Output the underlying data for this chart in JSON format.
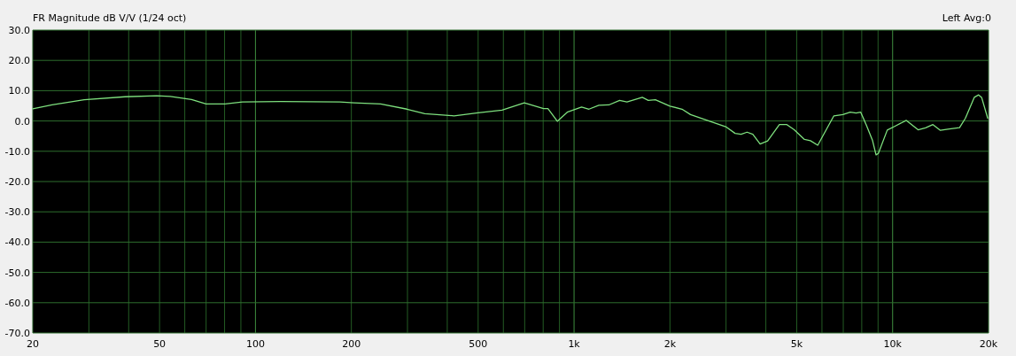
{
  "chart_data": {
    "type": "line",
    "title": "FR Magnitude dB V/V (1/24 oct)",
    "annotations": [
      "Left Avg:0"
    ],
    "log": "x",
    "grid": true,
    "marker": "none",
    "line_style": "solid",
    "xlim": [
      20,
      20000
    ],
    "ylim": [
      -70,
      30
    ],
    "xticks": [
      20,
      {
        "value": 30,
        "label": null
      },
      {
        "value": 40,
        "label": null
      },
      50,
      {
        "value": 60,
        "label": null
      },
      {
        "value": 70,
        "label": null
      },
      {
        "value": 80,
        "label": null
      },
      {
        "value": 90,
        "label": null
      },
      100,
      200,
      {
        "value": 300,
        "label": null
      },
      {
        "value": 400,
        "label": null
      },
      500,
      {
        "value": 600,
        "label": null
      },
      {
        "value": 700,
        "label": null
      },
      {
        "value": 800,
        "label": null
      },
      {
        "value": 900,
        "label": null
      },
      {
        "value": 1000,
        "label": "1k"
      },
      {
        "value": 2000,
        "label": "2k"
      },
      {
        "value": 3000,
        "label": null
      },
      {
        "value": 4000,
        "label": null
      },
      {
        "value": 5000,
        "label": "5k"
      },
      {
        "value": 6000,
        "label": null
      },
      {
        "value": 7000,
        "label": null
      },
      {
        "value": 8000,
        "label": null
      },
      {
        "value": 9000,
        "label": null
      },
      {
        "value": 10000,
        "label": "10k"
      },
      {
        "value": 20000,
        "label": "20k"
      }
    ],
    "yticks": [
      {
        "value": 30,
        "label": "30.0"
      },
      {
        "value": 20,
        "label": "20.0"
      },
      {
        "value": 10,
        "label": "10.0"
      },
      {
        "value": 0,
        "label": "0.0"
      },
      {
        "value": -10,
        "label": "-10.0"
      },
      {
        "value": -20,
        "label": "-20.0"
      },
      {
        "value": -30,
        "label": "-30.0"
      },
      {
        "value": -40,
        "label": "-40.0"
      },
      {
        "value": -50,
        "label": "-50.0"
      },
      {
        "value": -60,
        "label": "-60.0"
      },
      {
        "value": -70,
        "label": "-70.0"
      }
    ],
    "series": [
      {
        "color": "#7ee07e",
        "x": [
          20,
          23,
          29,
          39,
          49,
          54,
          63,
          70,
          80,
          91,
          120,
          184,
          204,
          247,
          299,
          340,
          420,
          500,
          594,
          698,
          802,
          828,
          886,
          952,
          1056,
          1114,
          1196,
          1286,
          1390,
          1466,
          1638,
          1710,
          1800,
          2000,
          2182,
          2320,
          3006,
          3204,
          3344,
          3492,
          3640,
          3838,
          4052,
          4412,
          4656,
          4910,
          5286,
          5520,
          5820,
          6540,
          6980,
          7360,
          7680,
          7940,
          8280,
          8640,
          8870,
          9020,
          9620,
          10140,
          11040,
          12020,
          12680,
          13380,
          14120,
          14900,
          16220,
          16920,
          18040,
          18620,
          19020,
          19880
        ],
        "values": [
          4.0,
          5.3,
          7.0,
          8.0,
          8.3,
          8.1,
          7.1,
          5.6,
          5.6,
          6.3,
          6.4,
          6.3,
          6.0,
          5.6,
          3.9,
          2.4,
          1.7,
          2.7,
          3.6,
          6.0,
          4.1,
          4.1,
          -0.1,
          2.9,
          4.6,
          3.9,
          5.2,
          5.3,
          6.8,
          6.3,
          7.8,
          6.8,
          7.0,
          4.9,
          3.9,
          2.1,
          -2.0,
          -4.1,
          -4.4,
          -3.7,
          -4.4,
          -7.6,
          -6.6,
          -1.2,
          -1.2,
          -2.9,
          -6.1,
          -6.5,
          -8.0,
          1.7,
          2.1,
          2.9,
          2.6,
          2.9,
          -1.5,
          -6.3,
          -11.2,
          -10.7,
          -3.0,
          -1.8,
          0.2,
          -2.9,
          -2.3,
          -1.2,
          -3.1,
          -2.7,
          -2.2,
          0.9,
          7.8,
          8.6,
          7.8,
          0.9
        ]
      }
    ]
  }
}
